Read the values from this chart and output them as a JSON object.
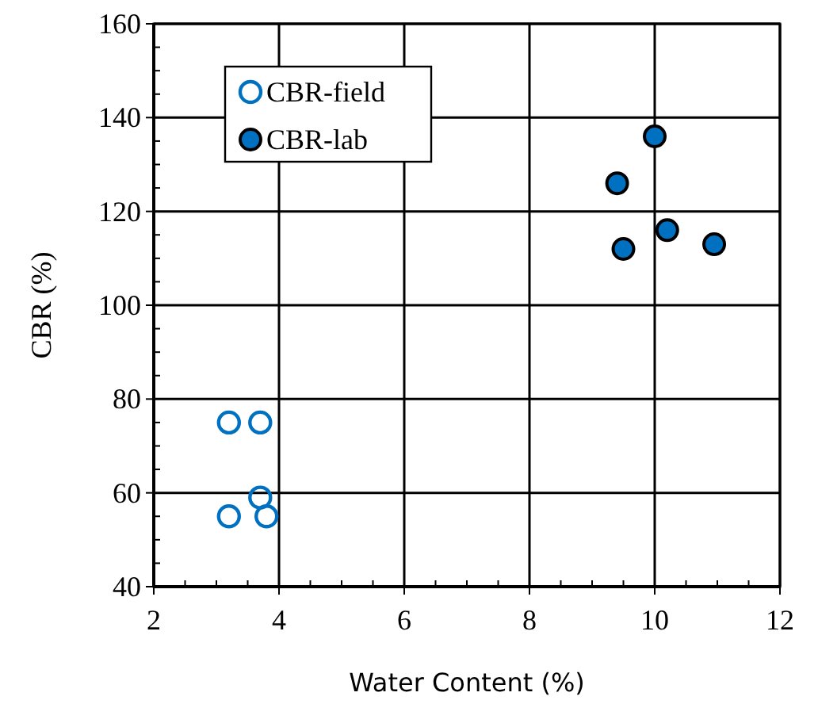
{
  "chart_data": {
    "type": "scatter",
    "xlabel": "Water Content (%)",
    "ylabel": "CBR (%)",
    "xlim": [
      2,
      12
    ],
    "xticks": [
      2,
      4,
      6,
      8,
      10,
      12
    ],
    "ylim": [
      40,
      160
    ],
    "yticks": [
      40,
      60,
      80,
      100,
      120,
      140,
      160
    ],
    "grid": true,
    "legend": "top left",
    "marker": "circle",
    "series": [
      {
        "name": "CBR-field",
        "color": "#0070c0",
        "x": [
          3.2,
          3.7,
          3.7,
          3.2,
          3.8
        ],
        "values": [
          75,
          75,
          59,
          55,
          55
        ]
      },
      {
        "name": "CBR-lab",
        "color": "#0070c0",
        "x": [
          9.4,
          10,
          9.5,
          10.2,
          10.95
        ],
        "values": [
          126,
          136,
          112,
          116,
          113
        ]
      }
    ]
  }
}
